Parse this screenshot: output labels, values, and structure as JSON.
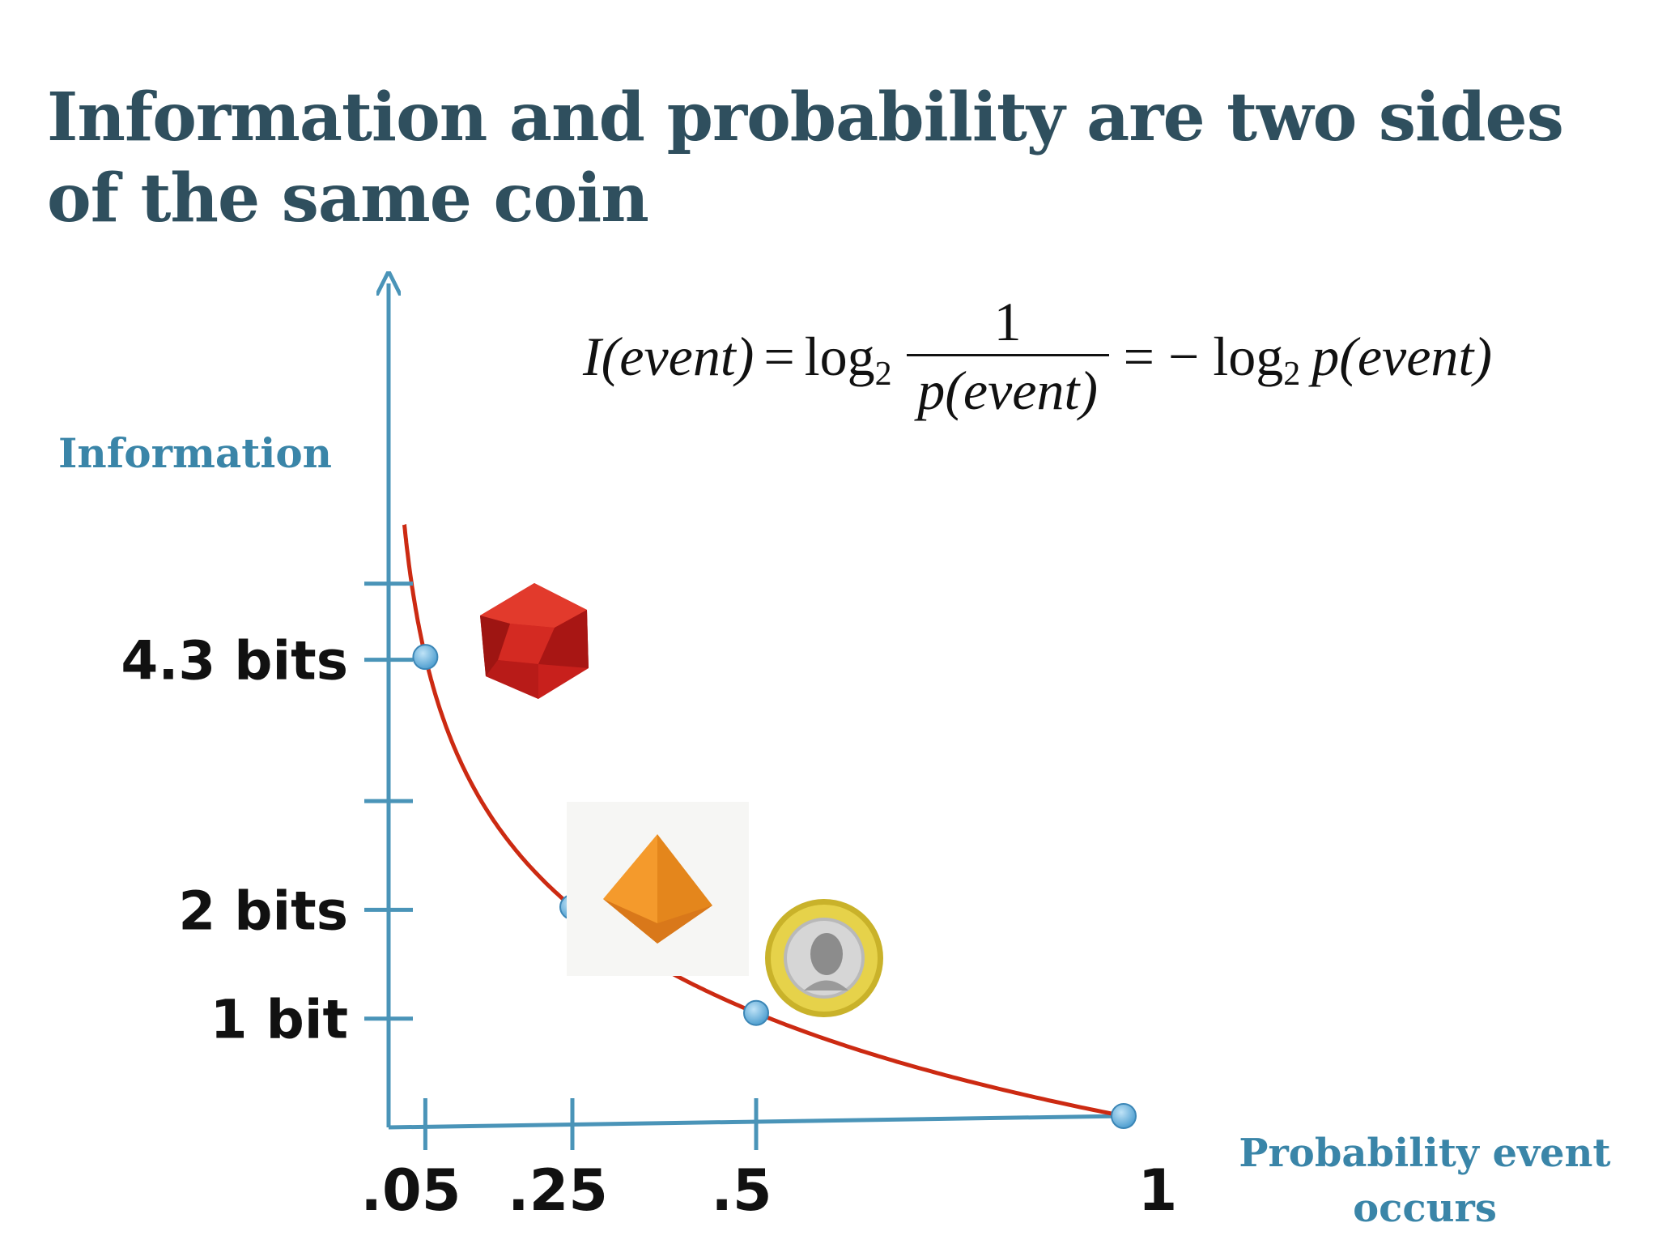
{
  "slide": {
    "title": "Information and probability are two sides of the same coin",
    "ylabel": "Information",
    "xlabel": "Probability event occurs"
  },
  "formula": {
    "lhs": "I(event)",
    "eq": "=",
    "log": "log",
    "base": "2",
    "numerator": "1",
    "denominator": "p(event)",
    "rhs": "= − log",
    "rhs_arg": "p(event)"
  },
  "colors": {
    "curve": "#cc2a12",
    "axis": "#4a94b8",
    "point": "#6cb4e0",
    "title": "#2f4f5e",
    "label": "#3a85a8"
  },
  "icons": [
    "d20-die-icon",
    "d4-die-icon",
    "euro-coin-icon"
  ],
  "chart_data": {
    "type": "line",
    "function": "I(p) = -log2(p)",
    "xlabel": "Probability event occurs",
    "ylabel": "Information",
    "x_ticks": [
      {
        "value": 0.05,
        "label": ".05"
      },
      {
        "value": 0.25,
        "label": ".25"
      },
      {
        "value": 0.5,
        "label": ".5"
      },
      {
        "value": 1,
        "label": "1"
      }
    ],
    "y_ticks_labeled": [
      {
        "value": 1,
        "label": "1 bit"
      },
      {
        "value": 2,
        "label": "2 bits"
      },
      {
        "value": 4.3,
        "label": "4.3 bits"
      }
    ],
    "y_ticks_unlabeled": [
      3,
      5
    ],
    "points": [
      {
        "x": 0.05,
        "y": 4.32
      },
      {
        "x": 0.25,
        "y": 2
      },
      {
        "x": 0.5,
        "y": 1
      },
      {
        "x": 1,
        "y": 0
      }
    ],
    "xlim": [
      0,
      1
    ],
    "ylim": [
      0,
      8.4
    ],
    "grid": false
  }
}
